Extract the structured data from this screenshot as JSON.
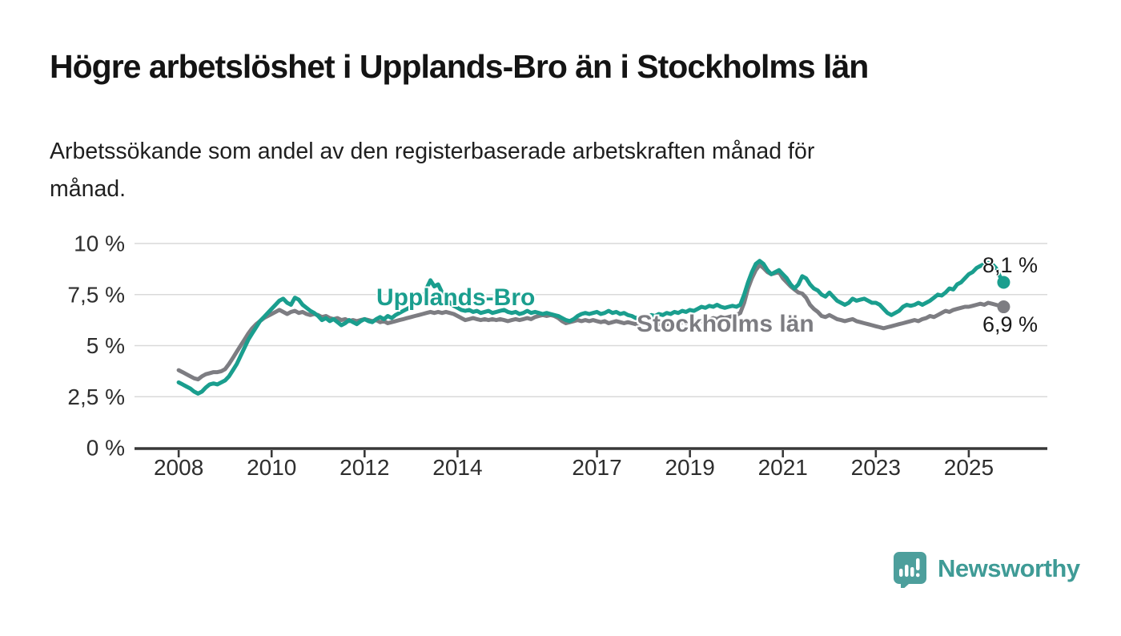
{
  "header": {
    "title": "Högre arbetslöshet i Upplands-Bro än i Stockholms län",
    "subtitle_lines": [
      "Arbetssökande som andel av den registerbaserade arbetskraften månad för",
      "månad."
    ]
  },
  "chart_data": {
    "type": "line",
    "title": "Högre arbetslöshet i Upplands-Bro än i Stockholms län",
    "subtitle": "Arbetssökande som andel av den registerbaserade arbetskraften månad för månad.",
    "x_unit": "decimal_year_monthly",
    "x_start_year": 2008,
    "xlim": [
      2007.05,
      2026.69
    ],
    "ylim": [
      0,
      10
    ],
    "grid": true,
    "legend_position": "inline-labels",
    "axis_color": "#383838",
    "gridline_color": "#d9d9d9",
    "value_label_color": "#1a1a1a",
    "x_ticks": {
      "values": [
        2008,
        2010,
        2012,
        2014,
        2017,
        2019,
        2021,
        2023,
        2025
      ],
      "labels": [
        "2008",
        "2010",
        "2012",
        "2014",
        "2017",
        "2019",
        "2021",
        "2023",
        "2025"
      ]
    },
    "y_ticks": {
      "values": [
        0,
        2.5,
        5,
        7.5,
        10
      ],
      "labels": [
        "0 %",
        "2,5 %",
        "5 %",
        "7,5 %",
        "10 %"
      ]
    },
    "series": [
      {
        "name": "Upplands-Bro",
        "color": "#1a9e8e",
        "end_value_label": "8,1 %",
        "end_value": 8.1,
        "values": [
          3.2,
          3.1,
          3.0,
          2.9,
          2.75,
          2.65,
          2.75,
          2.95,
          3.1,
          3.15,
          3.1,
          3.2,
          3.3,
          3.5,
          3.8,
          4.1,
          4.5,
          4.9,
          5.3,
          5.6,
          5.9,
          6.2,
          6.4,
          6.6,
          6.8,
          7.0,
          7.2,
          7.3,
          7.1,
          7.0,
          7.35,
          7.25,
          7.0,
          6.85,
          6.7,
          6.6,
          6.45,
          6.25,
          6.35,
          6.2,
          6.3,
          6.15,
          6.0,
          6.1,
          6.25,
          6.15,
          6.05,
          6.2,
          6.3,
          6.2,
          6.15,
          6.3,
          6.4,
          6.3,
          6.45,
          6.35,
          6.5,
          6.6,
          6.7,
          6.8,
          6.9,
          7.0,
          7.1,
          7.3,
          7.8,
          8.2,
          7.9,
          8.0,
          7.6,
          7.3,
          7.1,
          6.95,
          6.85,
          6.75,
          6.7,
          6.75,
          6.65,
          6.7,
          6.6,
          6.65,
          6.7,
          6.6,
          6.65,
          6.7,
          6.75,
          6.65,
          6.6,
          6.65,
          6.55,
          6.6,
          6.7,
          6.6,
          6.65,
          6.6,
          6.55,
          6.6,
          6.55,
          6.5,
          6.45,
          6.35,
          6.25,
          6.2,
          6.3,
          6.45,
          6.55,
          6.6,
          6.55,
          6.6,
          6.65,
          6.55,
          6.6,
          6.7,
          6.6,
          6.65,
          6.55,
          6.6,
          6.5,
          6.45,
          6.35,
          6.4,
          6.45,
          6.4,
          6.5,
          6.45,
          6.55,
          6.5,
          6.6,
          6.55,
          6.65,
          6.6,
          6.7,
          6.65,
          6.75,
          6.7,
          6.8,
          6.9,
          6.85,
          6.95,
          6.9,
          7.0,
          6.9,
          6.85,
          6.9,
          6.95,
          6.9,
          7.0,
          7.5,
          8.1,
          8.6,
          9.0,
          9.15,
          9.0,
          8.7,
          8.5,
          8.6,
          8.7,
          8.5,
          8.3,
          8.0,
          7.8,
          8.0,
          8.4,
          8.3,
          8.0,
          7.8,
          7.7,
          7.5,
          7.4,
          7.6,
          7.4,
          7.2,
          7.1,
          7.0,
          7.1,
          7.3,
          7.2,
          7.25,
          7.3,
          7.2,
          7.1,
          7.1,
          7.0,
          6.8,
          6.6,
          6.5,
          6.6,
          6.7,
          6.9,
          7.0,
          6.95,
          7.0,
          7.1,
          7.0,
          7.1,
          7.2,
          7.35,
          7.5,
          7.45,
          7.6,
          7.8,
          7.75,
          8.0,
          8.1,
          8.3,
          8.5,
          8.6,
          8.8,
          8.9,
          9.0,
          9.05,
          9.0,
          8.8,
          8.4,
          8.1
        ]
      },
      {
        "name": "Stockholms län",
        "color": "#7d7d82",
        "end_value_label": "6,9 %",
        "end_value": 6.9,
        "values": [
          3.8,
          3.7,
          3.6,
          3.5,
          3.4,
          3.35,
          3.5,
          3.6,
          3.65,
          3.7,
          3.7,
          3.75,
          3.85,
          4.1,
          4.4,
          4.7,
          5.0,
          5.3,
          5.6,
          5.85,
          6.05,
          6.2,
          6.35,
          6.45,
          6.55,
          6.65,
          6.75,
          6.65,
          6.55,
          6.65,
          6.7,
          6.6,
          6.65,
          6.55,
          6.5,
          6.55,
          6.5,
          6.4,
          6.45,
          6.35,
          6.3,
          6.35,
          6.25,
          6.3,
          6.2,
          6.25,
          6.2,
          6.25,
          6.3,
          6.25,
          6.2,
          6.25,
          6.15,
          6.2,
          6.1,
          6.15,
          6.2,
          6.25,
          6.3,
          6.35,
          6.4,
          6.45,
          6.5,
          6.55,
          6.6,
          6.65,
          6.6,
          6.65,
          6.6,
          6.65,
          6.6,
          6.55,
          6.45,
          6.35,
          6.25,
          6.3,
          6.35,
          6.3,
          6.25,
          6.3,
          6.25,
          6.3,
          6.25,
          6.3,
          6.25,
          6.2,
          6.25,
          6.3,
          6.25,
          6.3,
          6.35,
          6.3,
          6.4,
          6.45,
          6.5,
          6.45,
          6.5,
          6.45,
          6.35,
          6.2,
          6.1,
          6.15,
          6.2,
          6.25,
          6.2,
          6.25,
          6.2,
          6.25,
          6.2,
          6.15,
          6.2,
          6.1,
          6.15,
          6.2,
          6.15,
          6.1,
          6.15,
          6.1,
          6.05,
          6.1,
          6.05,
          6.1,
          6.05,
          6.0,
          6.05,
          6.1,
          6.05,
          6.1,
          6.05,
          6.1,
          6.15,
          6.1,
          6.15,
          6.2,
          6.25,
          6.2,
          6.3,
          6.25,
          6.35,
          6.3,
          6.4,
          6.35,
          6.4,
          6.45,
          6.5,
          6.6,
          7.1,
          7.8,
          8.3,
          8.7,
          8.95,
          8.8,
          8.6,
          8.5,
          8.55,
          8.6,
          8.3,
          8.1,
          7.9,
          7.75,
          7.6,
          7.55,
          7.35,
          7.0,
          6.8,
          6.65,
          6.45,
          6.4,
          6.5,
          6.4,
          6.3,
          6.25,
          6.2,
          6.25,
          6.3,
          6.2,
          6.15,
          6.1,
          6.05,
          6.0,
          5.95,
          5.9,
          5.85,
          5.9,
          5.95,
          6.0,
          6.05,
          6.1,
          6.15,
          6.2,
          6.25,
          6.2,
          6.3,
          6.35,
          6.45,
          6.4,
          6.5,
          6.6,
          6.7,
          6.65,
          6.75,
          6.8,
          6.85,
          6.9,
          6.9,
          6.95,
          7.0,
          7.05,
          7.0,
          7.1,
          7.05,
          7.0,
          6.95,
          6.9
        ]
      }
    ]
  },
  "branding": {
    "logo_text": "Newsworthy",
    "logo_text_color": "#3f9b96",
    "logo_icon_color": "#4d9f9c",
    "logo_icon": "chart-speech-bubble-icon"
  }
}
